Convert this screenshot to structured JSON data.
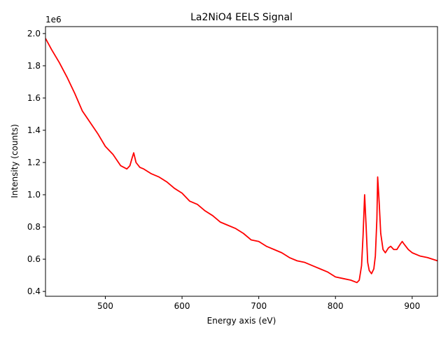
{
  "chart_data": {
    "type": "line",
    "title": "La2NiO4 EELS Signal",
    "xlabel": "Energy axis (eV)",
    "ylabel": "Intensity (counts)",
    "y_offset_label": "1e6",
    "color": "#ff0000",
    "x": [
      422,
      430,
      440,
      450,
      460,
      470,
      480,
      490,
      500,
      510,
      520,
      528,
      532,
      535,
      537,
      540,
      545,
      550,
      560,
      570,
      580,
      590,
      600,
      610,
      620,
      630,
      640,
      650,
      660,
      670,
      680,
      690,
      700,
      710,
      720,
      730,
      740,
      750,
      760,
      770,
      780,
      790,
      800,
      810,
      820,
      828,
      831,
      834,
      836,
      838,
      840,
      842,
      844,
      847,
      850,
      852,
      854,
      855,
      857,
      859,
      862,
      865,
      869,
      872,
      876,
      880,
      884,
      887,
      890,
      895,
      900,
      910,
      920,
      933
    ],
    "values": [
      1970000,
      1900000,
      1820000,
      1730000,
      1630000,
      1520000,
      1450000,
      1380000,
      1300000,
      1250000,
      1180000,
      1160000,
      1180000,
      1230000,
      1260000,
      1200000,
      1170000,
      1160000,
      1130000,
      1110000,
      1080000,
      1040000,
      1010000,
      960000,
      940000,
      900000,
      870000,
      830000,
      810000,
      790000,
      760000,
      720000,
      710000,
      680000,
      660000,
      640000,
      610000,
      590000,
      580000,
      560000,
      540000,
      520000,
      490000,
      480000,
      470000,
      455000,
      470000,
      560000,
      750000,
      1000000,
      800000,
      580000,
      530000,
      510000,
      540000,
      620000,
      850000,
      1110000,
      950000,
      760000,
      660000,
      640000,
      670000,
      680000,
      660000,
      660000,
      690000,
      710000,
      690000,
      660000,
      640000,
      620000,
      610000,
      590000
    ],
    "xlim": [
      422,
      933
    ],
    "ylim": [
      370000,
      2043000
    ],
    "xticks": [
      500,
      600,
      700,
      800,
      900
    ],
    "yticks": [
      {
        "value": 400000,
        "label": "0.4"
      },
      {
        "value": 600000,
        "label": "0.6"
      },
      {
        "value": 800000,
        "label": "0.8"
      },
      {
        "value": 1000000,
        "label": "1.0"
      },
      {
        "value": 1200000,
        "label": "1.2"
      },
      {
        "value": 1400000,
        "label": "1.4"
      },
      {
        "value": 1600000,
        "label": "1.6"
      },
      {
        "value": 1800000,
        "label": "1.8"
      },
      {
        "value": 2000000,
        "label": "2.0"
      }
    ]
  }
}
